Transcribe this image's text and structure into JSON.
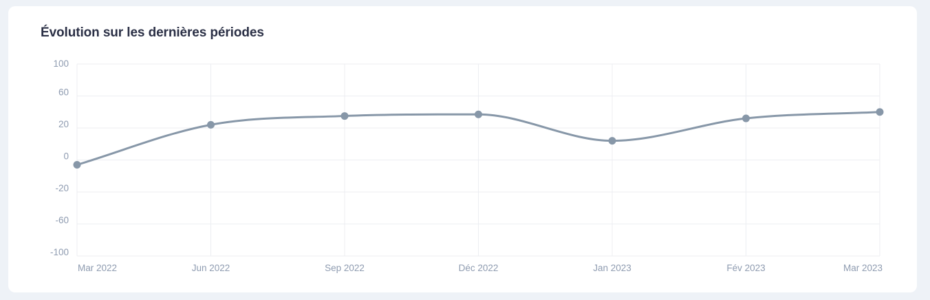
{
  "chart_data": {
    "type": "line",
    "title": "Évolution sur les dernières périodes",
    "xlabel": "",
    "ylabel": "",
    "categories": [
      "Mar 2022",
      "Jun 2022",
      "Sep 2022",
      "Déc 2022",
      "Jan 2023",
      "Fév 2023",
      "Mar 2023"
    ],
    "y_ticks": [
      "100",
      "60",
      "20",
      "0",
      "-20",
      "-60",
      "-100"
    ],
    "series": [
      {
        "values": [
          -3,
          24,
          35,
          37,
          12,
          32,
          40
        ],
        "color": "#8797a8"
      }
    ],
    "grid": true,
    "legend": "none",
    "line_style": "smooth"
  }
}
